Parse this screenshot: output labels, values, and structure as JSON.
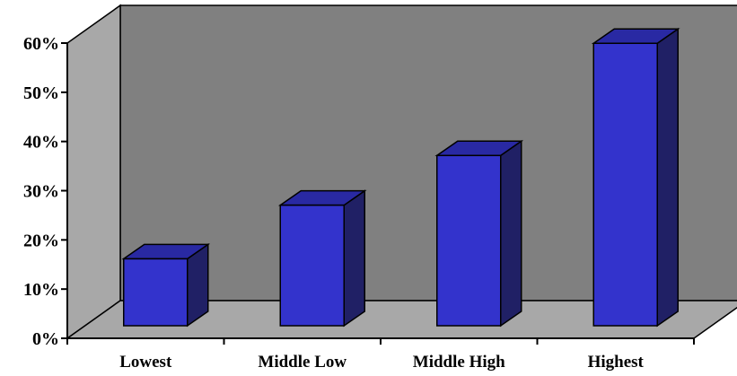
{
  "chart_data": {
    "type": "bar",
    "title": "",
    "xlabel": "",
    "ylabel": "",
    "categories": [
      "Lowest",
      "Middle Low",
      "Middle High",
      "Highest"
    ],
    "values": [
      13.6,
      24.5,
      34.6,
      57.4
    ],
    "ylim": [
      0,
      60
    ],
    "yticks": [
      0,
      10,
      20,
      30,
      40,
      50,
      60
    ],
    "ytick_labels": [
      "0%",
      "10%",
      "20%",
      "30%",
      "40%",
      "50%",
      "60%"
    ],
    "grid": false,
    "legend": "none",
    "style": "3d-column",
    "colors": {
      "bar_front": "#3333cc",
      "bar_side": "#202065",
      "bar_top": "#2929a3",
      "back_wall": "#808080",
      "side_wall": "#a8a8a8",
      "floor": "#a8a8a8",
      "stroke": "#000000"
    }
  }
}
